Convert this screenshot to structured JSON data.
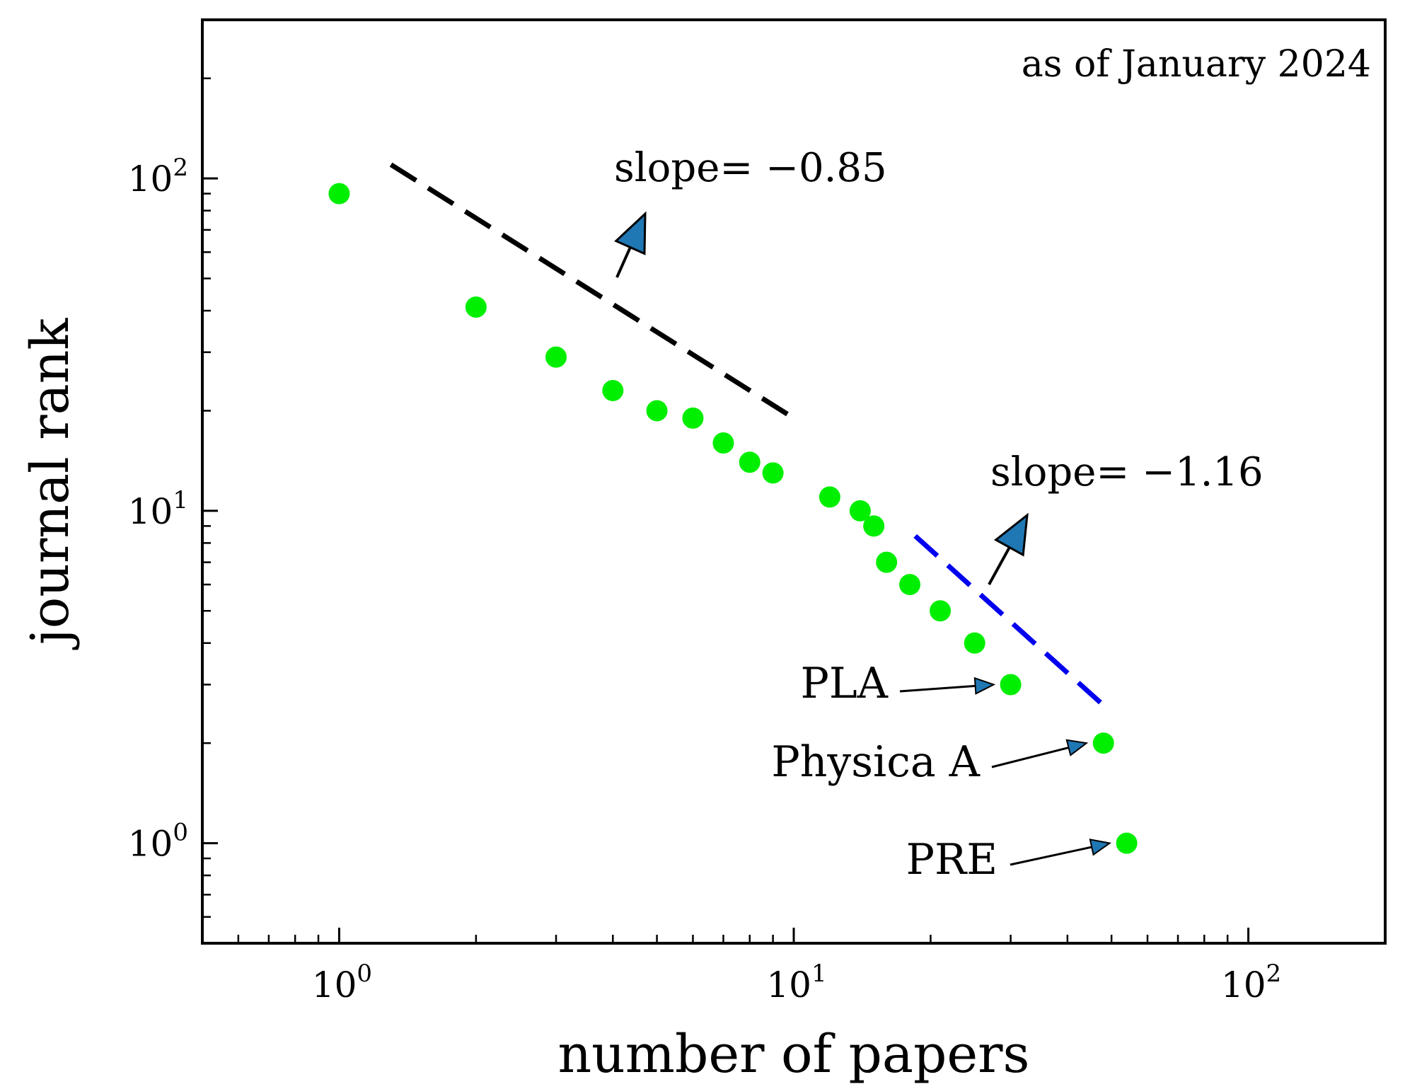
{
  "chart_data": {
    "type": "scatter",
    "title": "",
    "xlabel": "number of papers",
    "ylabel": "journal rank",
    "xscale": "log",
    "yscale": "log",
    "xlim": [
      0.5,
      200
    ],
    "ylim": [
      0.5,
      300
    ],
    "grid": false,
    "x_ticks": [
      {
        "value": 1,
        "base": "10",
        "exp": "0"
      },
      {
        "value": 10,
        "base": "10",
        "exp": "1"
      },
      {
        "value": 100,
        "base": "10",
        "exp": "2"
      }
    ],
    "y_ticks": [
      {
        "value": 1,
        "base": "10",
        "exp": "0"
      },
      {
        "value": 10,
        "base": "10",
        "exp": "1"
      },
      {
        "value": 100,
        "base": "10",
        "exp": "2"
      }
    ],
    "annotation_corner": "as of January 2024",
    "point_color": "#00ee00",
    "series": [
      {
        "points": [
          {
            "x": 1,
            "y": 90
          },
          {
            "x": 2,
            "y": 41
          },
          {
            "x": 3,
            "y": 29
          },
          {
            "x": 4,
            "y": 23
          },
          {
            "x": 5,
            "y": 20
          },
          {
            "x": 6,
            "y": 19
          },
          {
            "x": 7,
            "y": 16
          },
          {
            "x": 8,
            "y": 14
          },
          {
            "x": 9,
            "y": 13
          },
          {
            "x": 12,
            "y": 11
          },
          {
            "x": 14,
            "y": 10
          },
          {
            "x": 15,
            "y": 9
          },
          {
            "x": 16,
            "y": 7
          },
          {
            "x": 18,
            "y": 6
          },
          {
            "x": 21,
            "y": 5
          },
          {
            "x": 25,
            "y": 4
          },
          {
            "x": 30,
            "y": 3
          },
          {
            "x": 48,
            "y": 2
          },
          {
            "x": 54,
            "y": 1
          }
        ]
      }
    ],
    "fit_lines": [
      {
        "label": "slope= −0.85",
        "color": "#000000",
        "x": [
          1.3,
          10
        ],
        "y": [
          110,
          19
        ]
      },
      {
        "label": "slope= −1.16",
        "color": "#0000ee",
        "x": [
          18.5,
          48
        ],
        "y": [
          8.4,
          2.6
        ]
      }
    ],
    "arrow_color": "#1f77b4",
    "annotations": [
      {
        "text": "PLA",
        "x": 30,
        "y": 3
      },
      {
        "text": "Physica A",
        "x": 48,
        "y": 2
      },
      {
        "text": "PRE",
        "x": 54,
        "y": 1
      }
    ]
  }
}
